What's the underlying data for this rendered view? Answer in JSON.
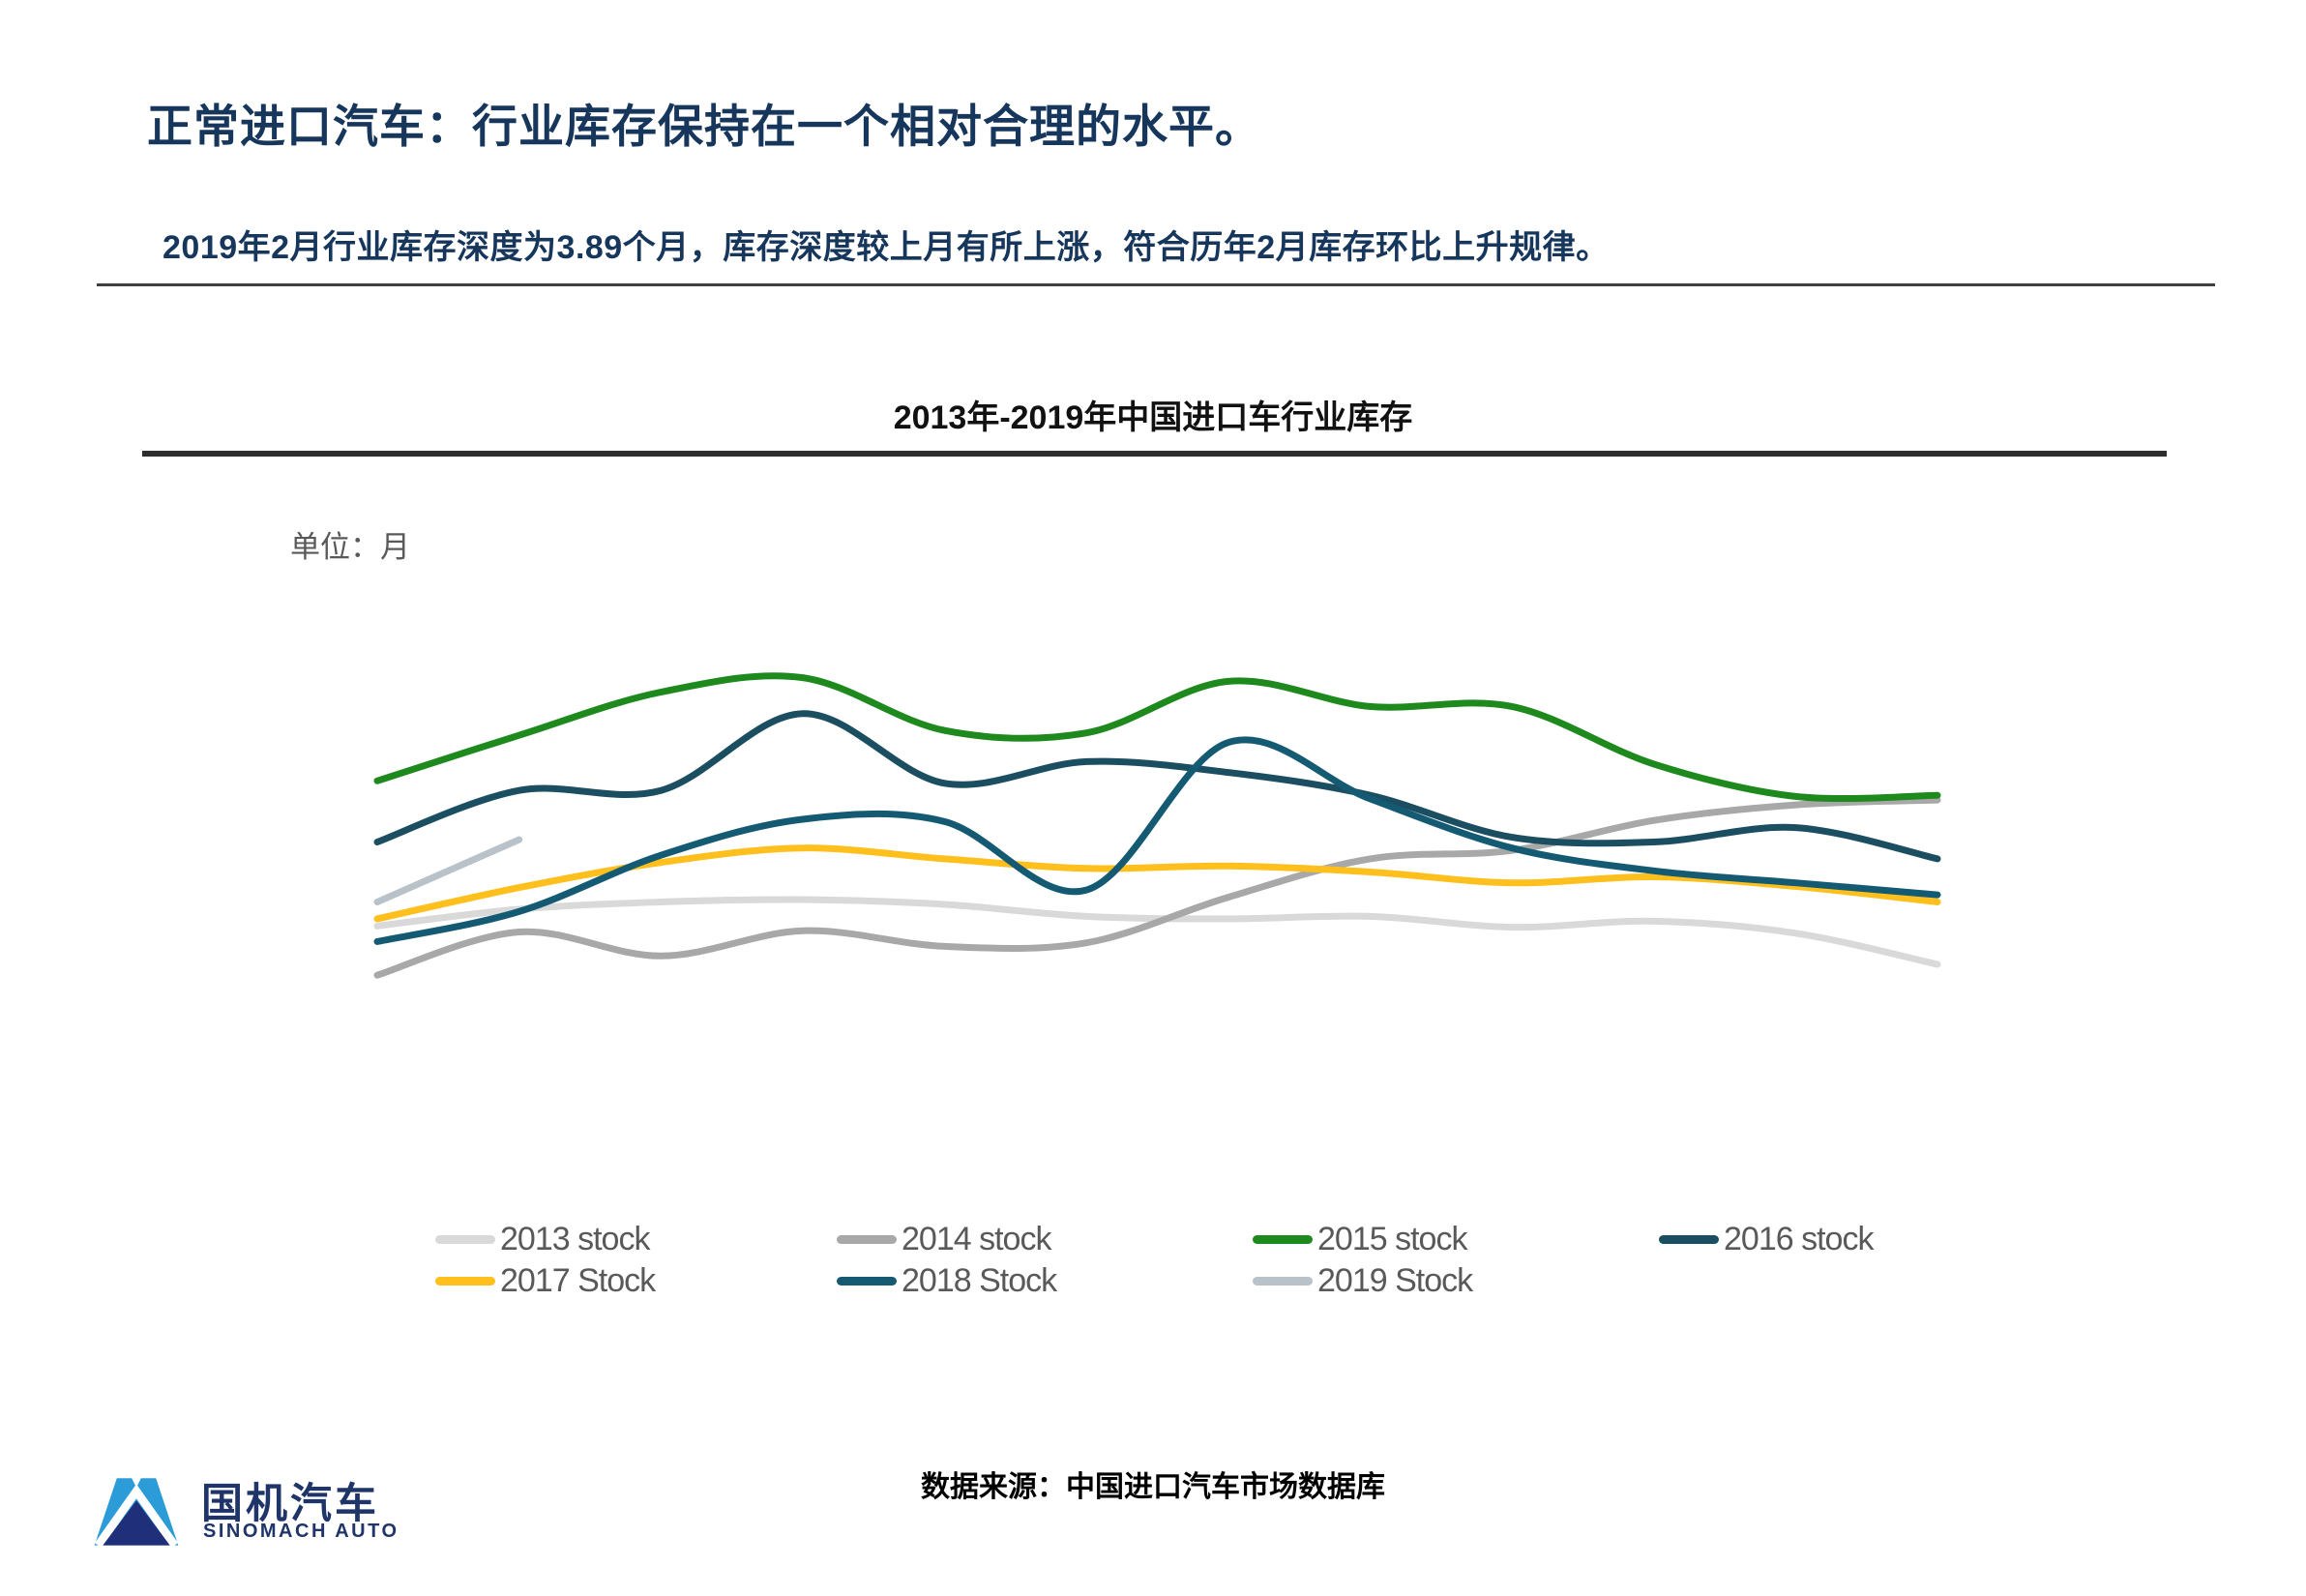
{
  "slide": {
    "title": "正常进口汽车：行业库存保持在一个相对合理的水平。",
    "subtitle": "2019年2月行业库存深度为3.89个月，库存深度较上月有所上涨，符合历年2月库存环比上升规律。",
    "source_note": "数据来源：中国进口汽车市场数据库",
    "logo": {
      "name_cn": "国机汽车",
      "name_en": "SINOMACH AUTO"
    }
  },
  "chart_data": {
    "type": "line",
    "title": "2013年-2019年中国进口车行业库存",
    "unit_label": "单位：月",
    "x": [
      1,
      2,
      3,
      4,
      5,
      6,
      7,
      8,
      9,
      10,
      11,
      12
    ],
    "x_meaning": "month of year",
    "ylim": [
      2.6,
      5.5
    ],
    "grid": false,
    "axes_visible": false,
    "legend_position": "bottom",
    "smooth_lines": true,
    "highlight_value": "2019年2月库存深度 3.89 个月",
    "series": [
      {
        "id": "2013",
        "name": "2013 stock",
        "color": "#D9D9D9",
        "values": [
          3.17,
          3.31,
          3.37,
          3.39,
          3.35,
          3.25,
          3.23,
          3.25,
          3.16,
          3.21,
          3.11,
          2.85
        ]
      },
      {
        "id": "2014",
        "name": "2014 stock",
        "color": "#A8A8A8",
        "values": [
          2.76,
          3.12,
          2.92,
          3.13,
          3.0,
          3.03,
          3.41,
          3.73,
          3.8,
          4.05,
          4.18,
          4.22
        ]
      },
      {
        "id": "2015",
        "name": "2015 stock",
        "color": "#1E8A1E",
        "values": [
          4.38,
          4.76,
          5.12,
          5.24,
          4.8,
          4.78,
          5.21,
          5.0,
          5.0,
          4.52,
          4.25,
          4.26
        ]
      },
      {
        "id": "2016",
        "name": "2016 stock",
        "color": "#1B4E61",
        "values": [
          3.87,
          4.3,
          4.3,
          4.94,
          4.36,
          4.54,
          4.45,
          4.26,
          3.91,
          3.87,
          3.99,
          3.73
        ]
      },
      {
        "id": "2017",
        "name": "2017 Stock",
        "color": "#FFC01E",
        "values": [
          3.23,
          3.49,
          3.7,
          3.82,
          3.73,
          3.65,
          3.67,
          3.62,
          3.53,
          3.58,
          3.5,
          3.37
        ]
      },
      {
        "id": "2018",
        "name": "2018 Stock",
        "color": "#155A73",
        "values": [
          3.04,
          3.29,
          3.76,
          4.06,
          4.04,
          3.47,
          4.7,
          4.23,
          3.82,
          3.63,
          3.53,
          3.43
        ]
      },
      {
        "id": "2019",
        "name": "2019 Stock",
        "color": "#B9C2C9",
        "values": [
          3.37,
          3.89
        ]
      }
    ]
  }
}
